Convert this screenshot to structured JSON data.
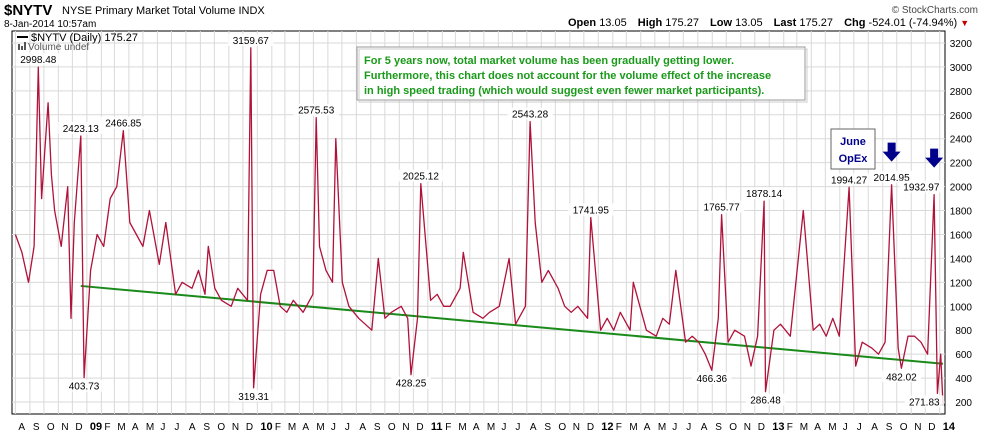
{
  "header": {
    "symbol": "$NYTV",
    "name": "NYSE Primary Market Total Volume",
    "exchange": "INDX",
    "datetime": "8-Jan-2014 10:57am",
    "logo": "© StockCharts.com"
  },
  "quote": {
    "open_label": "Open",
    "open": "13.05",
    "high_label": "High",
    "high": "175.27",
    "low_label": "Low",
    "low": "13.05",
    "last_label": "Last",
    "last": "175.27",
    "chg_label": "Chg",
    "chg": "-524.01 (-74.94%)",
    "chg_icon": "down-triangle-icon",
    "chg_color": "#c00000"
  },
  "legend": {
    "series_label": "$NYTV (Daily) 175.27",
    "volume_label": "Volume undef"
  },
  "annotation": {
    "text_lines": [
      "For 5 years now, total market volume has been gradually getting lower.",
      "Furthermore, this chart does not account for the volume effect of the increase",
      "in high speed trading (which would suggest even fewer market participants)."
    ],
    "text_color": "#1a9a1a",
    "marker_lines": [
      "June",
      "OpEx"
    ],
    "marker_color": "#00008b",
    "arrow_icon": "down-arrow-icon"
  },
  "colors": {
    "line": "#b0123a",
    "trend": "#1a8a1a",
    "grid": "#d9d9d9"
  },
  "chart_data": {
    "type": "line",
    "title": "$NYTV NYSE Primary Market Total Volume INDX",
    "ylim": [
      100,
      3300
    ],
    "y_ticks": [
      200,
      400,
      600,
      800,
      1000,
      1200,
      1400,
      1600,
      1800,
      2000,
      2200,
      2400,
      2600,
      2800,
      3000,
      3200
    ],
    "x_tick_labels": [
      "A",
      "S",
      "O",
      "N",
      "D",
      "09",
      "F",
      "M",
      "A",
      "M",
      "J",
      "J",
      "A",
      "S",
      "O",
      "N",
      "D",
      "10",
      "F",
      "M",
      "A",
      "M",
      "J",
      "J",
      "A",
      "S",
      "O",
      "N",
      "D",
      "11",
      "F",
      "M",
      "A",
      "M",
      "J",
      "J",
      "A",
      "S",
      "O",
      "N",
      "D",
      "12",
      "F",
      "M",
      "A",
      "M",
      "J",
      "J",
      "A",
      "S",
      "O",
      "N",
      "D",
      "13",
      "F",
      "M",
      "A",
      "M",
      "J",
      "J",
      "A",
      "S",
      "O",
      "N",
      "D",
      "14"
    ],
    "x_tick_bold": [
      "09",
      "10",
      "11",
      "12",
      "13",
      "14"
    ],
    "x_range": [
      "2008-07-29",
      "2014-01-08"
    ],
    "series": [
      {
        "name": "$NYTV (Daily)",
        "points": [
          [
            "2008-08-01",
            1600
          ],
          [
            "2008-08-15",
            1450
          ],
          [
            "2008-08-29",
            1200
          ],
          [
            "2008-09-10",
            1500
          ],
          [
            "2008-09-19",
            2998.48
          ],
          [
            "2008-09-26",
            1900
          ],
          [
            "2008-10-03",
            2300
          ],
          [
            "2008-10-10",
            2700
          ],
          [
            "2008-10-17",
            2100
          ],
          [
            "2008-10-24",
            1800
          ],
          [
            "2008-11-07",
            1500
          ],
          [
            "2008-11-21",
            2000
          ],
          [
            "2008-11-28",
            900
          ],
          [
            "2008-12-05",
            1700
          ],
          [
            "2008-12-19",
            2423.13
          ],
          [
            "2008-12-26",
            403.73
          ],
          [
            "2009-01-09",
            1300
          ],
          [
            "2009-01-23",
            1600
          ],
          [
            "2009-02-06",
            1500
          ],
          [
            "2009-02-20",
            1900
          ],
          [
            "2009-03-06",
            2000
          ],
          [
            "2009-03-20",
            2466.85
          ],
          [
            "2009-04-03",
            1700
          ],
          [
            "2009-04-17",
            1600
          ],
          [
            "2009-05-01",
            1500
          ],
          [
            "2009-05-15",
            1800
          ],
          [
            "2009-06-05",
            1350
          ],
          [
            "2009-06-19",
            1700
          ],
          [
            "2009-07-10",
            1100
          ],
          [
            "2009-07-24",
            1200
          ],
          [
            "2009-08-14",
            1150
          ],
          [
            "2009-08-28",
            1300
          ],
          [
            "2009-09-11",
            1100
          ],
          [
            "2009-09-18",
            1500
          ],
          [
            "2009-10-02",
            1150
          ],
          [
            "2009-10-16",
            1050
          ],
          [
            "2009-11-06",
            1000
          ],
          [
            "2009-11-20",
            1150
          ],
          [
            "2009-12-11",
            1050
          ],
          [
            "2009-12-18",
            3159.67
          ],
          [
            "2009-12-24",
            319.31
          ],
          [
            "2010-01-08",
            1100
          ],
          [
            "2010-01-22",
            1300
          ],
          [
            "2010-02-05",
            1300
          ],
          [
            "2010-02-19",
            1000
          ],
          [
            "2010-03-05",
            950
          ],
          [
            "2010-03-19",
            1050
          ],
          [
            "2010-04-09",
            950
          ],
          [
            "2010-04-30",
            1100
          ],
          [
            "2010-05-07",
            2575.53
          ],
          [
            "2010-05-14",
            1500
          ],
          [
            "2010-05-28",
            1300
          ],
          [
            "2010-06-11",
            1200
          ],
          [
            "2010-06-18",
            2400
          ],
          [
            "2010-07-02",
            1200
          ],
          [
            "2010-07-16",
            1000
          ],
          [
            "2010-08-06",
            900
          ],
          [
            "2010-08-20",
            850
          ],
          [
            "2010-09-03",
            800
          ],
          [
            "2010-09-17",
            1400
          ],
          [
            "2010-10-01",
            900
          ],
          [
            "2010-10-15",
            950
          ],
          [
            "2010-11-05",
            1000
          ],
          [
            "2010-11-19",
            900
          ],
          [
            "2010-11-26",
            428.25
          ],
          [
            "2010-12-10",
            900
          ],
          [
            "2010-12-17",
            2025.12
          ],
          [
            "2011-01-07",
            1050
          ],
          [
            "2011-01-21",
            1100
          ],
          [
            "2011-02-04",
            1000
          ],
          [
            "2011-02-18",
            1000
          ],
          [
            "2011-03-11",
            1150
          ],
          [
            "2011-03-18",
            1450
          ],
          [
            "2011-04-08",
            950
          ],
          [
            "2011-04-29",
            900
          ],
          [
            "2011-05-13",
            950
          ],
          [
            "2011-06-03",
            1000
          ],
          [
            "2011-06-24",
            1400
          ],
          [
            "2011-07-08",
            850
          ],
          [
            "2011-07-29",
            1000
          ],
          [
            "2011-08-08",
            2543.28
          ],
          [
            "2011-08-19",
            1700
          ],
          [
            "2011-09-02",
            1200
          ],
          [
            "2011-09-16",
            1300
          ],
          [
            "2011-10-07",
            1150
          ],
          [
            "2011-10-21",
            1000
          ],
          [
            "2011-11-04",
            950
          ],
          [
            "2011-11-18",
            1000
          ],
          [
            "2011-12-09",
            900
          ],
          [
            "2011-12-16",
            1741.95
          ],
          [
            "2012-01-06",
            800
          ],
          [
            "2012-01-20",
            900
          ],
          [
            "2012-02-03",
            800
          ],
          [
            "2012-02-17",
            950
          ],
          [
            "2012-03-09",
            800
          ],
          [
            "2012-03-16",
            1200
          ],
          [
            "2012-04-13",
            800
          ],
          [
            "2012-05-04",
            750
          ],
          [
            "2012-05-18",
            900
          ],
          [
            "2012-06-01",
            850
          ],
          [
            "2012-06-15",
            1300
          ],
          [
            "2012-07-06",
            700
          ],
          [
            "2012-07-20",
            750
          ],
          [
            "2012-08-03",
            700
          ],
          [
            "2012-08-17",
            600
          ],
          [
            "2012-08-31",
            466.36
          ],
          [
            "2012-09-14",
            900
          ],
          [
            "2012-09-21",
            1765.77
          ],
          [
            "2012-10-05",
            700
          ],
          [
            "2012-10-19",
            800
          ],
          [
            "2012-11-09",
            750
          ],
          [
            "2012-11-23",
            500
          ],
          [
            "2012-12-07",
            750
          ],
          [
            "2012-12-21",
            1878.14
          ],
          [
            "2012-12-24",
            286.48
          ],
          [
            "2013-01-11",
            800
          ],
          [
            "2013-01-25",
            850
          ],
          [
            "2013-02-15",
            750
          ],
          [
            "2013-03-15",
            1800
          ],
          [
            "2013-04-05",
            800
          ],
          [
            "2013-04-19",
            850
          ],
          [
            "2013-05-03",
            750
          ],
          [
            "2013-05-17",
            900
          ],
          [
            "2013-05-31",
            750
          ],
          [
            "2013-06-21",
            1994.27
          ],
          [
            "2013-07-05",
            500
          ],
          [
            "2013-07-19",
            700
          ],
          [
            "2013-08-09",
            650
          ],
          [
            "2013-08-23",
            600
          ],
          [
            "2013-09-06",
            700
          ],
          [
            "2013-09-20",
            2014.95
          ],
          [
            "2013-10-04",
            650
          ],
          [
            "2013-10-11",
            482.02
          ],
          [
            "2013-10-25",
            750
          ],
          [
            "2013-11-08",
            750
          ],
          [
            "2013-11-22",
            700
          ],
          [
            "2013-12-06",
            600
          ],
          [
            "2013-12-20",
            1932.97
          ],
          [
            "2013-12-27",
            271.83
          ],
          [
            "2014-01-03",
            600
          ],
          [
            "2014-01-08",
            175.27
          ]
        ]
      },
      {
        "name": "trend",
        "points": [
          [
            "2008-12-19",
            1170
          ],
          [
            "2014-01-08",
            520
          ]
        ]
      }
    ],
    "data_labels": [
      {
        "date": "2008-09-19",
        "value": "2998.48",
        "pos": "above"
      },
      {
        "date": "2008-12-19",
        "value": "2423.13",
        "pos": "above"
      },
      {
        "date": "2008-12-26",
        "value": "403.73",
        "pos": "below"
      },
      {
        "date": "2009-03-20",
        "value": "2466.85",
        "pos": "above"
      },
      {
        "date": "2009-12-18",
        "value": "3159.67",
        "pos": "above"
      },
      {
        "date": "2009-12-24",
        "value": "319.31",
        "pos": "below"
      },
      {
        "date": "2010-05-07",
        "value": "2575.53",
        "pos": "above"
      },
      {
        "date": "2010-11-26",
        "value": "428.25",
        "pos": "below"
      },
      {
        "date": "2010-12-17",
        "value": "2025.12",
        "pos": "above"
      },
      {
        "date": "2011-08-08",
        "value": "2543.28",
        "pos": "above"
      },
      {
        "date": "2011-12-16",
        "value": "1741.95",
        "pos": "above"
      },
      {
        "date": "2012-08-31",
        "value": "466.36",
        "pos": "below"
      },
      {
        "date": "2012-09-21",
        "value": "1765.77",
        "pos": "above"
      },
      {
        "date": "2012-12-21",
        "value": "1878.14",
        "pos": "above"
      },
      {
        "date": "2012-12-24",
        "value": "286.48",
        "pos": "below"
      },
      {
        "date": "2013-06-21",
        "value": "1994.27",
        "pos": "above"
      },
      {
        "date": "2013-09-20",
        "value": "2014.95",
        "pos": "above"
      },
      {
        "date": "2013-10-11",
        "value": "482.02",
        "pos": "below"
      },
      {
        "date": "2013-12-20",
        "value": "1932.97",
        "pos": "above"
      },
      {
        "date": "2013-12-27",
        "value": "271.83",
        "pos": "below"
      }
    ],
    "arrows": [
      {
        "date": "2013-09-20",
        "value": 2200
      },
      {
        "date": "2013-12-20",
        "value": 2150
      }
    ],
    "grid": true
  }
}
